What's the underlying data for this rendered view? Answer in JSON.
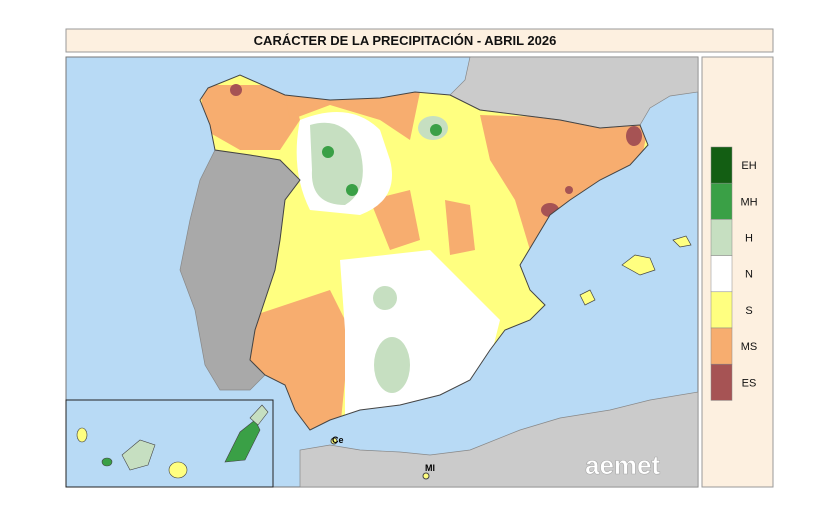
{
  "header": {
    "title": "CARÁCTER DE LA PRECIPITACIÓN - ABRIL 2026"
  },
  "legend": {
    "items": [
      {
        "label": "EH",
        "color": "#135e13"
      },
      {
        "label": "MH",
        "color": "#3aa046"
      },
      {
        "label": "H",
        "color": "#c6dfc1"
      },
      {
        "label": "N",
        "color": "#ffffff"
      },
      {
        "label": "S",
        "color": "#ffff80"
      },
      {
        "label": "MS",
        "color": "#f7ad6f"
      },
      {
        "label": "ES",
        "color": "#a65354"
      }
    ]
  },
  "places": {
    "ceuta": "Ce",
    "melilla": "Ml"
  },
  "logo": "aemet"
}
